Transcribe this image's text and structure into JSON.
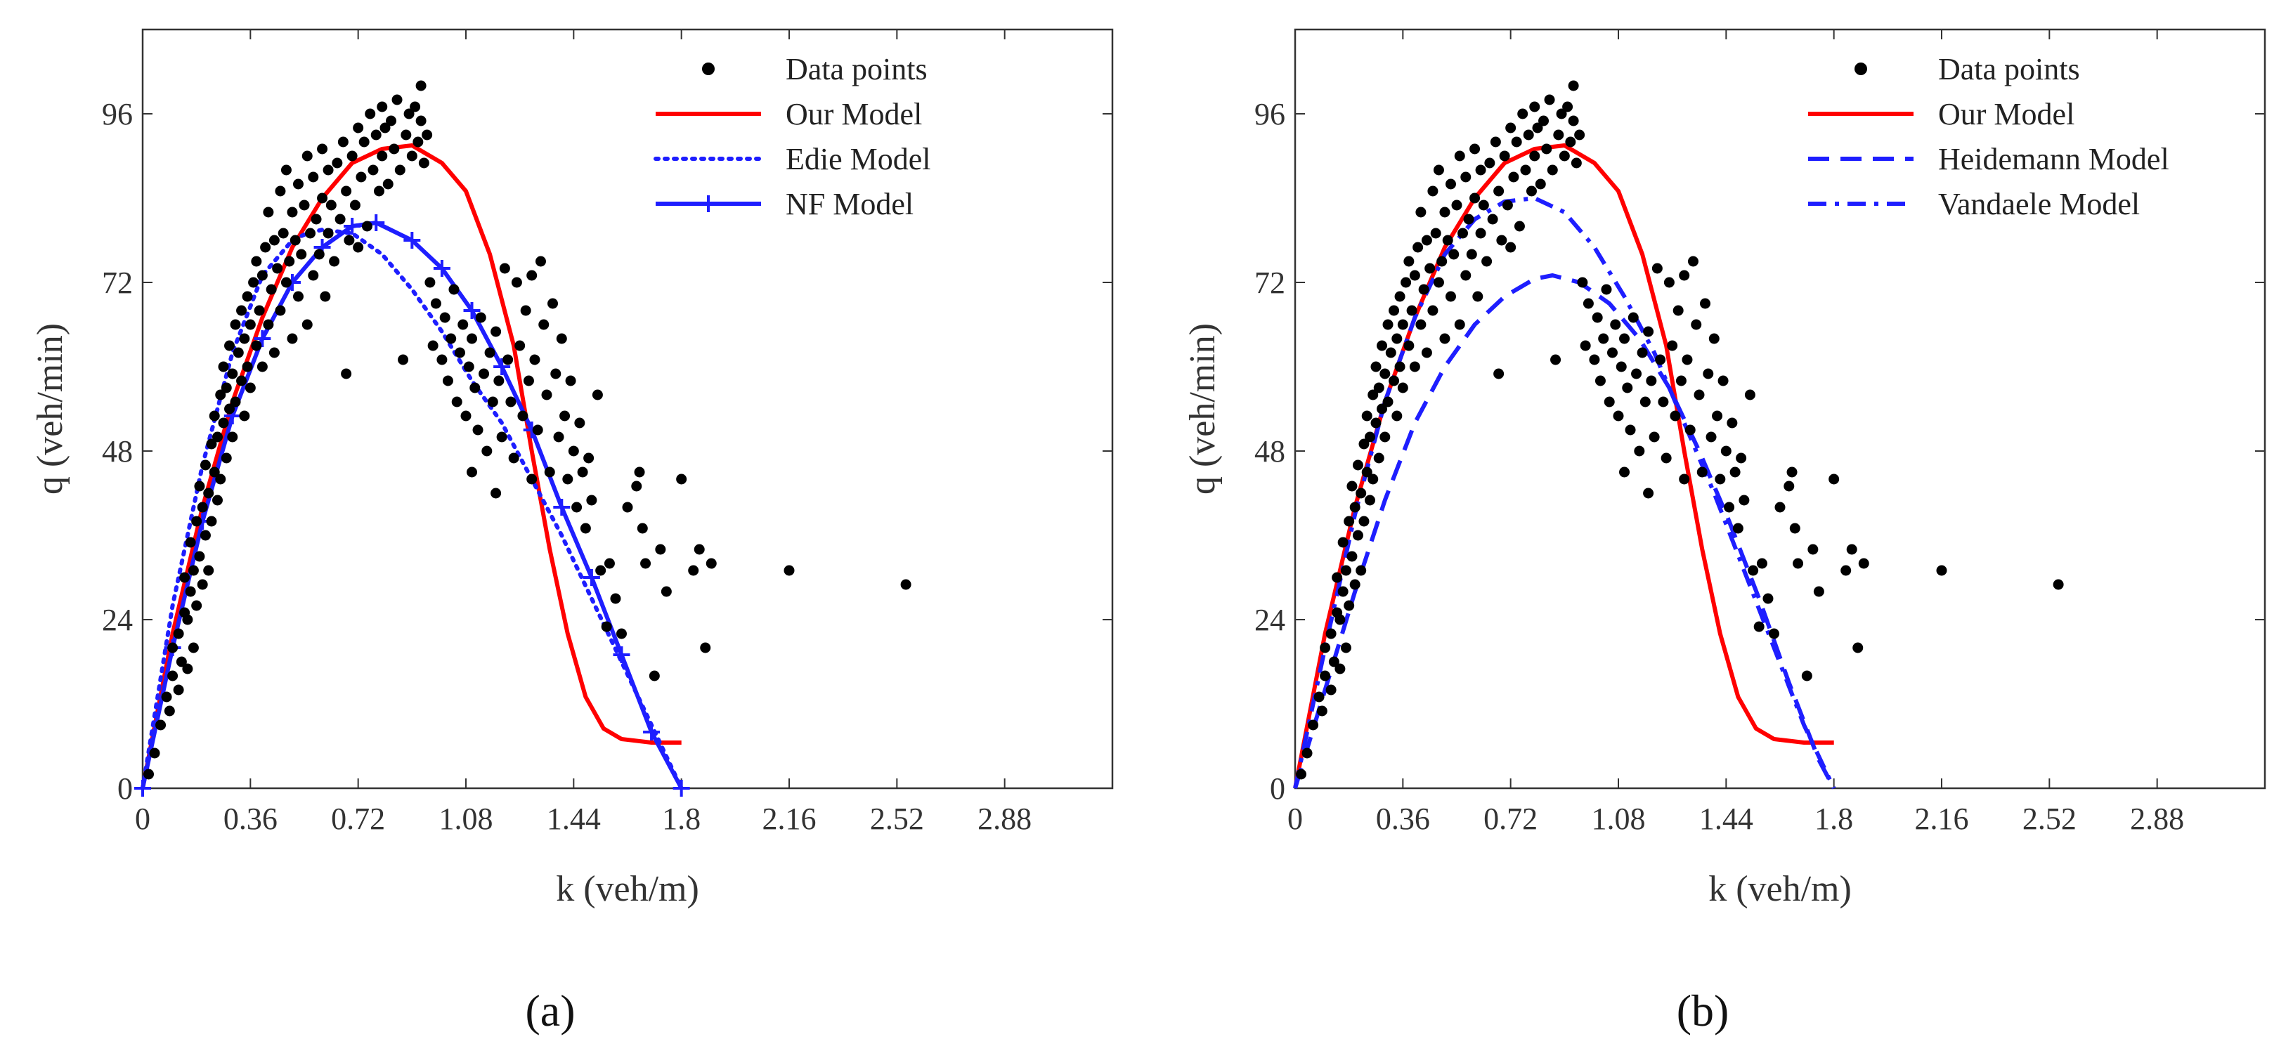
{
  "chart_data": [
    {
      "panel": "(a)",
      "type": "scatter",
      "xlabel": "k  (veh/m)",
      "ylabel": "q  (veh/min)",
      "xlim": [
        0,
        3.24
      ],
      "ylim": [
        0,
        108
      ],
      "xticks": [
        0,
        0.36,
        0.72,
        1.08,
        1.44,
        1.8,
        2.16,
        2.52,
        2.88
      ],
      "xtick_labels": [
        "0",
        "0.36",
        "0.72",
        "1.08",
        "1.44",
        "1.8",
        "2.16",
        "2.52",
        "2.88"
      ],
      "yticks": [
        0,
        24,
        48,
        72,
        96
      ],
      "ytick_labels": [
        "0",
        "24",
        "48",
        "72",
        "96"
      ],
      "legend_position": "top-right",
      "scatter_series": {
        "name": "Data points",
        "color": "#000000",
        "points": [
          [
            0.02,
            2
          ],
          [
            0.04,
            5
          ],
          [
            0.06,
            9
          ],
          [
            0.08,
            13
          ],
          [
            0.09,
            11
          ],
          [
            0.1,
            16
          ],
          [
            0.1,
            20
          ],
          [
            0.12,
            14
          ],
          [
            0.12,
            22
          ],
          [
            0.13,
            18
          ],
          [
            0.14,
            25
          ],
          [
            0.14,
            30
          ],
          [
            0.15,
            17
          ],
          [
            0.15,
            24
          ],
          [
            0.16,
            28
          ],
          [
            0.16,
            35
          ],
          [
            0.17,
            20
          ],
          [
            0.17,
            31
          ],
          [
            0.18,
            26
          ],
          [
            0.18,
            38
          ],
          [
            0.19,
            33
          ],
          [
            0.19,
            43
          ],
          [
            0.2,
            29
          ],
          [
            0.2,
            40
          ],
          [
            0.21,
            36
          ],
          [
            0.21,
            46
          ],
          [
            0.22,
            31
          ],
          [
            0.22,
            42
          ],
          [
            0.23,
            49
          ],
          [
            0.23,
            38
          ],
          [
            0.24,
            45
          ],
          [
            0.24,
            53
          ],
          [
            0.25,
            41
          ],
          [
            0.25,
            50
          ],
          [
            0.26,
            56
          ],
          [
            0.26,
            44
          ],
          [
            0.27,
            52
          ],
          [
            0.27,
            60
          ],
          [
            0.28,
            47
          ],
          [
            0.28,
            57
          ],
          [
            0.29,
            54
          ],
          [
            0.29,
            63
          ],
          [
            0.3,
            50
          ],
          [
            0.3,
            59
          ],
          [
            0.31,
            66
          ],
          [
            0.31,
            55
          ],
          [
            0.32,
            62
          ],
          [
            0.33,
            58
          ],
          [
            0.33,
            68
          ],
          [
            0.34,
            53
          ],
          [
            0.34,
            64
          ],
          [
            0.35,
            70
          ],
          [
            0.35,
            60
          ],
          [
            0.36,
            57
          ],
          [
            0.36,
            66
          ],
          [
            0.37,
            72
          ],
          [
            0.38,
            63
          ],
          [
            0.38,
            75
          ],
          [
            0.39,
            68
          ],
          [
            0.4,
            60
          ],
          [
            0.4,
            73
          ],
          [
            0.41,
            77
          ],
          [
            0.42,
            66
          ],
          [
            0.42,
            82
          ],
          [
            0.43,
            71
          ],
          [
            0.44,
            62
          ],
          [
            0.44,
            78
          ],
          [
            0.45,
            74
          ],
          [
            0.46,
            85
          ],
          [
            0.46,
            68
          ],
          [
            0.47,
            79
          ],
          [
            0.48,
            72
          ],
          [
            0.48,
            88
          ],
          [
            0.49,
            75
          ],
          [
            0.5,
            64
          ],
          [
            0.5,
            82
          ],
          [
            0.51,
            78
          ],
          [
            0.52,
            70
          ],
          [
            0.52,
            86
          ],
          [
            0.53,
            76
          ],
          [
            0.54,
            83
          ],
          [
            0.55,
            66
          ],
          [
            0.55,
            90
          ],
          [
            0.56,
            79
          ],
          [
            0.57,
            73
          ],
          [
            0.57,
            87
          ],
          [
            0.58,
            81
          ],
          [
            0.59,
            76
          ],
          [
            0.6,
            84
          ],
          [
            0.6,
            91
          ],
          [
            0.61,
            70
          ],
          [
            0.62,
            79
          ],
          [
            0.62,
            88
          ],
          [
            0.63,
            83
          ],
          [
            0.64,
            75
          ],
          [
            0.65,
            89
          ],
          [
            0.66,
            81
          ],
          [
            0.67,
            92
          ],
          [
            0.68,
            59
          ],
          [
            0.68,
            85
          ],
          [
            0.69,
            78
          ],
          [
            0.7,
            90
          ],
          [
            0.71,
            83
          ],
          [
            0.72,
            94
          ],
          [
            0.72,
            77
          ],
          [
            0.73,
            87
          ],
          [
            0.74,
            92
          ],
          [
            0.75,
            80
          ],
          [
            0.76,
            96
          ],
          [
            0.77,
            88
          ],
          [
            0.78,
            93
          ],
          [
            0.79,
            85
          ],
          [
            0.8,
            97
          ],
          [
            0.8,
            90
          ],
          [
            0.81,
            94
          ],
          [
            0.82,
            86
          ],
          [
            0.83,
            95
          ],
          [
            0.84,
            91
          ],
          [
            0.85,
            98
          ],
          [
            0.86,
            88
          ],
          [
            0.87,
            61
          ],
          [
            0.88,
            93
          ],
          [
            0.89,
            96
          ],
          [
            0.9,
            90
          ],
          [
            0.91,
            97
          ],
          [
            0.92,
            92
          ],
          [
            0.93,
            100
          ],
          [
            0.93,
            95
          ],
          [
            0.94,
            89
          ],
          [
            0.95,
            93
          ],
          [
            0.96,
            72
          ],
          [
            0.97,
            63
          ],
          [
            0.98,
            69
          ],
          [
            1.0,
            61
          ],
          [
            1.01,
            67
          ],
          [
            1.02,
            58
          ],
          [
            1.03,
            64
          ],
          [
            1.04,
            71
          ],
          [
            1.05,
            55
          ],
          [
            1.06,
            62
          ],
          [
            1.07,
            66
          ],
          [
            1.08,
            53
          ],
          [
            1.09,
            60
          ],
          [
            1.1,
            45
          ],
          [
            1.1,
            64
          ],
          [
            1.11,
            57
          ],
          [
            1.12,
            51
          ],
          [
            1.13,
            67
          ],
          [
            1.14,
            59
          ],
          [
            1.15,
            48
          ],
          [
            1.16,
            62
          ],
          [
            1.17,
            55
          ],
          [
            1.18,
            42
          ],
          [
            1.18,
            65
          ],
          [
            1.19,
            58
          ],
          [
            1.2,
            50
          ],
          [
            1.21,
            74
          ],
          [
            1.22,
            61
          ],
          [
            1.23,
            55
          ],
          [
            1.24,
            47
          ],
          [
            1.25,
            72
          ],
          [
            1.26,
            63
          ],
          [
            1.27,
            53
          ],
          [
            1.28,
            68
          ],
          [
            1.29,
            58
          ],
          [
            1.3,
            44
          ],
          [
            1.3,
            73
          ],
          [
            1.31,
            61
          ],
          [
            1.32,
            51
          ],
          [
            1.33,
            75
          ],
          [
            1.34,
            66
          ],
          [
            1.35,
            56
          ],
          [
            1.36,
            45
          ],
          [
            1.37,
            69
          ],
          [
            1.38,
            59
          ],
          [
            1.39,
            50
          ],
          [
            1.4,
            64
          ],
          [
            1.41,
            53
          ],
          [
            1.42,
            44
          ],
          [
            1.43,
            58
          ],
          [
            1.44,
            48
          ],
          [
            1.45,
            40
          ],
          [
            1.46,
            52
          ],
          [
            1.47,
            45
          ],
          [
            1.48,
            37
          ],
          [
            1.49,
            47
          ],
          [
            1.5,
            41
          ],
          [
            1.52,
            56
          ],
          [
            1.53,
            31
          ],
          [
            1.55,
            23
          ],
          [
            1.56,
            32
          ],
          [
            1.58,
            27
          ],
          [
            1.6,
            22
          ],
          [
            1.62,
            40
          ],
          [
            1.65,
            43
          ],
          [
            1.66,
            45
          ],
          [
            1.67,
            37
          ],
          [
            1.68,
            32
          ],
          [
            1.71,
            16
          ],
          [
            1.73,
            34
          ],
          [
            1.75,
            28
          ],
          [
            1.8,
            44
          ],
          [
            1.84,
            31
          ],
          [
            1.86,
            34
          ],
          [
            1.88,
            20
          ],
          [
            1.9,
            32
          ],
          [
            2.16,
            31
          ],
          [
            2.55,
            29
          ]
        ]
      },
      "series": [
        {
          "name": "Our Model",
          "color": "#ff0000",
          "style": "solid",
          "x": [
            0,
            0.1,
            0.2,
            0.3,
            0.4,
            0.5,
            0.6,
            0.7,
            0.8,
            0.9,
            1.0,
            1.08,
            1.16,
            1.24,
            1.3,
            1.36,
            1.42,
            1.48,
            1.54,
            1.6,
            1.7,
            1.8
          ],
          "y": [
            0,
            22,
            40,
            55,
            67,
            77,
            84,
            89,
            91,
            91.5,
            89,
            85,
            76,
            63,
            48,
            34,
            22,
            13,
            8.5,
            7,
            6.5,
            6.5
          ]
        },
        {
          "name": "Edie Model",
          "color": "#1e1eff",
          "style": "dotted",
          "x": [
            0,
            0.1,
            0.2,
            0.3,
            0.4,
            0.5,
            0.55,
            0.6,
            0.7,
            0.8,
            0.9,
            1.0,
            1.1,
            1.2,
            1.3,
            1.4,
            1.5,
            1.6,
            1.7,
            1.8
          ],
          "y": [
            0,
            26,
            46,
            62,
            73,
            78,
            79,
            79.5,
            79,
            76,
            71,
            65,
            58,
            52,
            44,
            36,
            27,
            18,
            9,
            0
          ]
        },
        {
          "name": "NF Model",
          "color": "#1e1eff",
          "style": "solid-plus",
          "x": [
            0,
            0.1,
            0.2,
            0.3,
            0.4,
            0.5,
            0.6,
            0.7,
            0.78,
            0.9,
            1.0,
            1.1,
            1.2,
            1.3,
            1.4,
            1.5,
            1.6,
            1.7,
            1.8
          ],
          "y": [
            0,
            20,
            38,
            53,
            64,
            72,
            77,
            80,
            80.5,
            78,
            74,
            68,
            60,
            51,
            40,
            30,
            19,
            8,
            0
          ]
        }
      ]
    },
    {
      "panel": "(b)",
      "type": "scatter",
      "xlabel": "k  (veh/m)",
      "ylabel": "q  (veh/min)",
      "xlim": [
        0,
        3.24
      ],
      "ylim": [
        0,
        108
      ],
      "xticks": [
        0,
        0.36,
        0.72,
        1.08,
        1.44,
        1.8,
        2.16,
        2.52,
        2.88
      ],
      "xtick_labels": [
        "0",
        "0.36",
        "0.72",
        "1.08",
        "1.44",
        "1.8",
        "2.16",
        "2.52",
        "2.88"
      ],
      "yticks": [
        0,
        24,
        48,
        72,
        96
      ],
      "ytick_labels": [
        "0",
        "24",
        "48",
        "72",
        "96"
      ],
      "legend_position": "top-right",
      "scatter_series": {
        "name": "Data points",
        "color": "#000000",
        "same_as_panel": "(a)"
      },
      "series": [
        {
          "name": "Our Model",
          "color": "#ff0000",
          "style": "solid",
          "x": [
            0,
            0.1,
            0.2,
            0.3,
            0.4,
            0.5,
            0.6,
            0.7,
            0.8,
            0.9,
            1.0,
            1.08,
            1.16,
            1.24,
            1.3,
            1.36,
            1.42,
            1.48,
            1.54,
            1.6,
            1.7,
            1.8
          ],
          "y": [
            0,
            22,
            40,
            55,
            67,
            77,
            84,
            89,
            91,
            91.5,
            89,
            85,
            76,
            63,
            48,
            34,
            22,
            13,
            8.5,
            7,
            6.5,
            6.5
          ]
        },
        {
          "name": "Heidemann Model",
          "color": "#1e1eff",
          "style": "dashed",
          "x": [
            0,
            0.1,
            0.2,
            0.3,
            0.4,
            0.5,
            0.6,
            0.7,
            0.8,
            0.86,
            0.95,
            1.05,
            1.15,
            1.25,
            1.35,
            1.45,
            1.55,
            1.65,
            1.75,
            1.8
          ],
          "y": [
            0,
            14,
            28,
            41,
            52,
            60,
            66,
            70,
            72.5,
            73,
            72,
            69,
            64,
            57,
            48,
            38,
            27,
            15,
            4,
            0
          ]
        },
        {
          "name": "Vandaele Model",
          "color": "#1e1eff",
          "style": "dashdot",
          "x": [
            0,
            0.1,
            0.2,
            0.3,
            0.4,
            0.5,
            0.6,
            0.7,
            0.8,
            0.9,
            1.0,
            1.1,
            1.2,
            1.3,
            1.4,
            1.5,
            1.6,
            1.7,
            1.8
          ],
          "y": [
            0,
            20,
            39,
            55,
            67,
            76,
            81,
            83.5,
            84,
            82,
            77,
            70,
            62,
            52,
            42,
            31,
            20,
            9,
            0
          ]
        }
      ]
    }
  ]
}
